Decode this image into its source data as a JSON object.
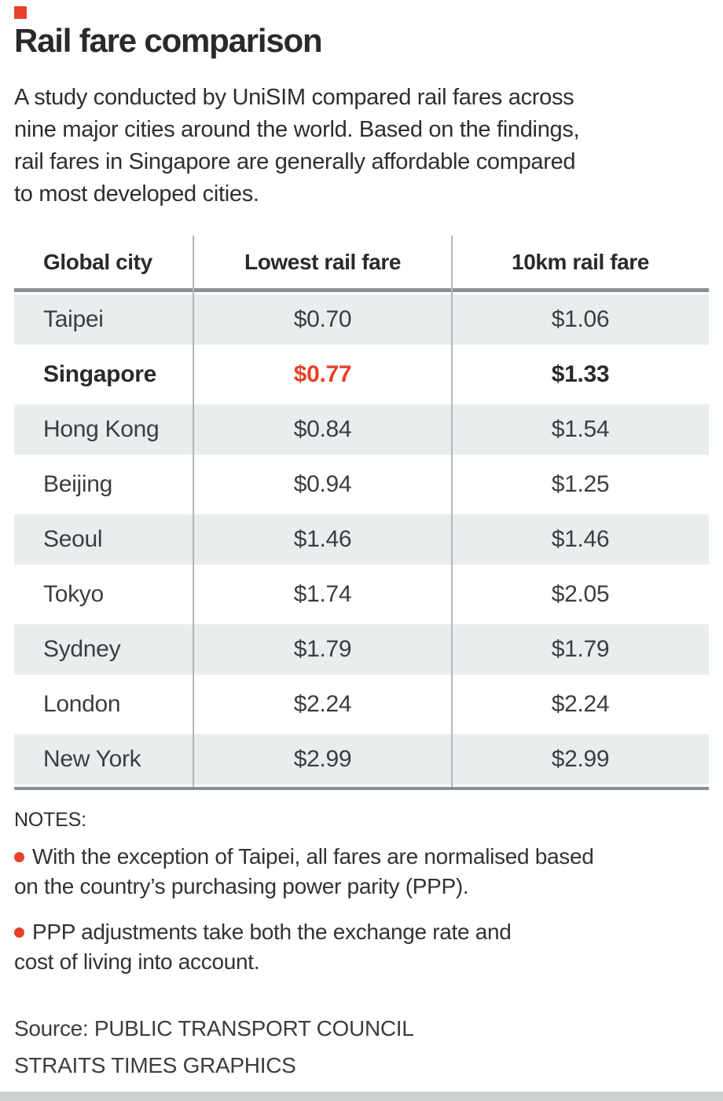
{
  "palette": {
    "accent_red": "#e8402a",
    "row_shade": "#e9edee",
    "rule_gray": "#8a9194",
    "divider_gray": "#b2b8ba",
    "bottom_bar_gray": "#cdd1d2",
    "text_dark": "#2a2a2a"
  },
  "header": {
    "title": "Rail fare comparison",
    "intro": "A study conducted by UniSIM compared rail fares across\nnine major cities around the world. Based on the findings,\nrail fares in Singapore are generally affordable compared\nto most developed cities."
  },
  "table": {
    "columns": [
      "Global city",
      "Lowest rail fare",
      "10km rail fare"
    ],
    "rows": [
      {
        "city": "Taipei",
        "lowest": "$0.70",
        "ten_km": "$1.06"
      },
      {
        "city": "Singapore",
        "lowest": "$0.77",
        "ten_km": "$1.33",
        "highlight": true
      },
      {
        "city": "Hong Kong",
        "lowest": "$0.84",
        "ten_km": "$1.54"
      },
      {
        "city": "Beijing",
        "lowest": "$0.94",
        "ten_km": "$1.25"
      },
      {
        "city": "Seoul",
        "lowest": "$1.46",
        "ten_km": "$1.46"
      },
      {
        "city": "Tokyo",
        "lowest": "$1.74",
        "ten_km": "$2.05"
      },
      {
        "city": "Sydney",
        "lowest": "$1.79",
        "ten_km": "$1.79"
      },
      {
        "city": "London",
        "lowest": "$2.24",
        "ten_km": "$2.24"
      },
      {
        "city": "New York",
        "lowest": "$2.99",
        "ten_km": "$2.99"
      }
    ]
  },
  "chart_data": {
    "type": "table",
    "title": "Rail fare comparison",
    "categories": [
      "Taipei",
      "Singapore",
      "Hong Kong",
      "Beijing",
      "Seoul",
      "Tokyo",
      "Sydney",
      "London",
      "New York"
    ],
    "series": [
      {
        "name": "Lowest rail fare",
        "values": [
          0.7,
          0.77,
          0.84,
          0.94,
          1.46,
          1.74,
          1.79,
          2.24,
          2.99
        ]
      },
      {
        "name": "10km rail fare",
        "values": [
          1.06,
          1.33,
          1.54,
          1.25,
          1.46,
          2.05,
          1.79,
          2.24,
          2.99
        ]
      }
    ],
    "units": "dollars",
    "highlighted_category": "Singapore"
  },
  "notes": {
    "label": "NOTES:",
    "items": [
      {
        "text": "With the exception of Taipei, all fares are normalised based\non the country’s purchasing power parity (PPP)."
      },
      {
        "text": "PPP adjustments take both the exchange rate and\ncost of living into account."
      }
    ]
  },
  "source": {
    "text": "Source: PUBLIC TRANSPORT COUNCIL\nSTRAITS TIMES GRAPHICS"
  }
}
